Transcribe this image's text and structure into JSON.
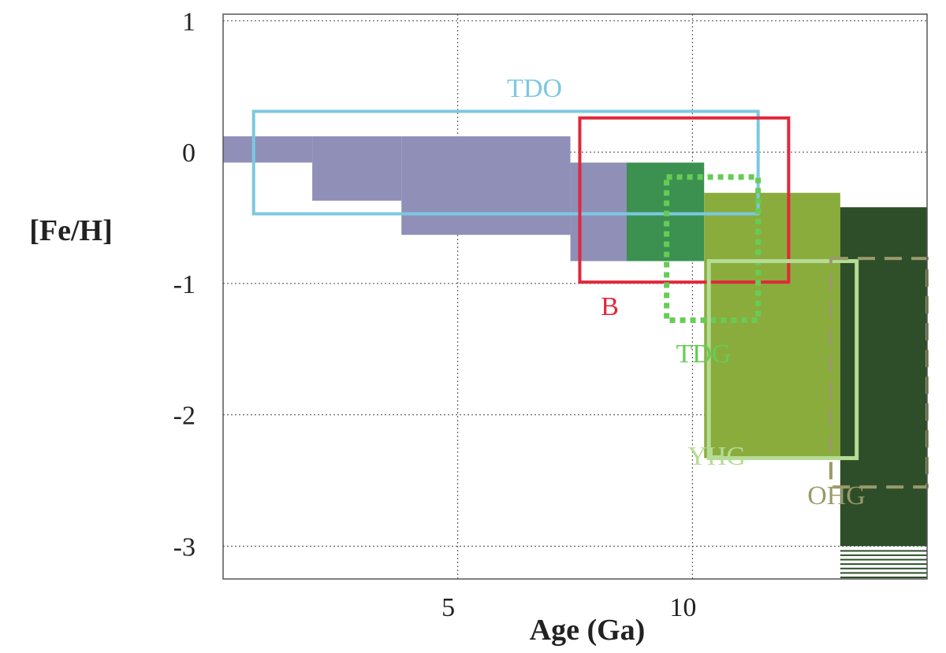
{
  "chart_data": {
    "type": "area",
    "title": "",
    "xlabel": "Age (Ga)",
    "ylabel": "[Fe/H]",
    "xlim": [
      0,
      15
    ],
    "ylim": [
      -3.25,
      1.05
    ],
    "x_ticks": [
      {
        "value": 5,
        "label": "5"
      },
      {
        "value": 10,
        "label": "10"
      }
    ],
    "y_ticks": [
      {
        "value": 1,
        "label": "1"
      },
      {
        "value": 0,
        "label": "0"
      },
      {
        "value": -1,
        "label": "-1"
      },
      {
        "value": -2,
        "label": "-2"
      },
      {
        "value": -3,
        "label": "-3"
      }
    ],
    "grid": true,
    "filled_regions": [
      {
        "id": "thin-disc-1",
        "color": "#8f8fb8",
        "x0": 0.0,
        "x1": 1.9,
        "y0": -0.08,
        "y1": 0.12
      },
      {
        "id": "thin-disc-2",
        "color": "#8f8fb8",
        "x0": 1.9,
        "x1": 3.8,
        "y0": -0.37,
        "y1": 0.12
      },
      {
        "id": "thin-disc-3",
        "color": "#8f8fb8",
        "x0": 3.8,
        "x1": 7.4,
        "y0": -0.63,
        "y1": 0.12
      },
      {
        "id": "thin-disc-4",
        "color": "#8f8fb8",
        "x0": 7.4,
        "x1": 8.6,
        "y0": -0.83,
        "y1": -0.08
      },
      {
        "id": "thick-disc",
        "color": "#3c9150",
        "x0": 8.6,
        "x1": 10.25,
        "y0": -0.83,
        "y1": -0.08
      },
      {
        "id": "young-halo",
        "color": "#8aac3c",
        "x0": 10.25,
        "x1": 13.15,
        "y0": -2.33,
        "y1": -0.31
      },
      {
        "id": "old-halo",
        "color": "#2e4e2a",
        "x0": 13.15,
        "x1": 15.0,
        "y0": -3.0,
        "y1": -0.42
      }
    ],
    "outlined_regions": [
      {
        "name": "TDO",
        "color": "#7cc8e0",
        "style": "solid",
        "width": 4,
        "x0": 0.65,
        "x1": 11.4,
        "y0": -0.47,
        "y1": 0.31,
        "label_x": 6.05,
        "label_y": 0.42
      },
      {
        "name": "B",
        "color": "#e0283c",
        "style": "solid",
        "width": 4,
        "x0": 7.6,
        "x1": 12.05,
        "y0": -0.99,
        "y1": 0.26,
        "label_x": 8.05,
        "label_y": -1.24
      },
      {
        "name": "TDG",
        "color": "#66cc55",
        "style": "dotted",
        "width": 7,
        "x0": 9.45,
        "x1": 11.4,
        "y0": -1.28,
        "y1": -0.19,
        "label_x": 9.65,
        "label_y": -1.6
      },
      {
        "name": "YHG",
        "color": "#b5dc95",
        "style": "solid",
        "width": 5,
        "x0": 10.35,
        "x1": 13.5,
        "y0": -2.33,
        "y1": -0.83,
        "label_x": 9.9,
        "label_y": -2.38
      },
      {
        "name": "OHG",
        "color": "#9a9a6a",
        "style": "dashed",
        "width": 4,
        "x0": 12.95,
        "x1": 15.0,
        "y0": -2.55,
        "y1": -0.81,
        "label_x": 12.45,
        "label_y": -2.68
      }
    ],
    "hatch_region": {
      "color": "#2e4e2a",
      "x0": 13.15,
      "x1": 15.0,
      "y0": -3.25,
      "y1": -3.0,
      "lines": 7
    }
  }
}
